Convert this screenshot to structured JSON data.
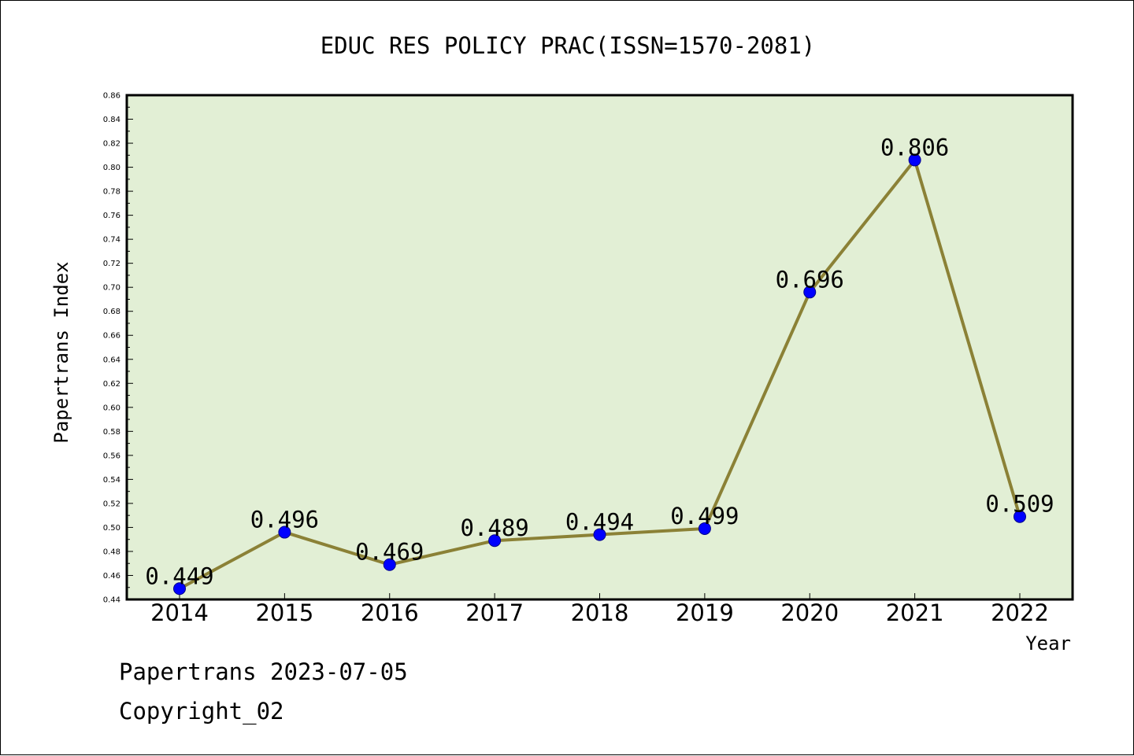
{
  "chart_data": {
    "type": "line",
    "title": "EDUC RES POLICY PRAC(ISSN=1570-2081)",
    "xlabel": "Year",
    "ylabel": "Papertrans Index",
    "categories": [
      "2014",
      "2015",
      "2016",
      "2017",
      "2018",
      "2019",
      "2020",
      "2021",
      "2022"
    ],
    "series": [
      {
        "values": [
          0.449,
          0.496,
          0.469,
          0.489,
          0.494,
          0.499,
          0.696,
          0.806,
          0.509
        ],
        "data_labels": [
          "0.449",
          "0.496",
          "0.469",
          "0.489",
          "0.494",
          "0.499",
          "0.696",
          "0.806",
          "0.509"
        ],
        "line_color": "#8b8136",
        "marker_color": "#0000ff"
      }
    ],
    "ylim": [
      0.44,
      0.86
    ],
    "ymajor_step": 0.02,
    "yticks": [
      "0.44",
      "0.46",
      "0.48",
      "0.50",
      "0.52",
      "0.54",
      "0.56",
      "0.58",
      "0.60",
      "0.62",
      "0.64",
      "0.66",
      "0.68",
      "0.70",
      "0.72",
      "0.74",
      "0.76",
      "0.78",
      "0.80",
      "0.82",
      "0.84",
      "0.86"
    ],
    "grid": false,
    "legend": "none",
    "plot_background": "#e2efd5"
  },
  "footer": {
    "source": "Papertrans 2023-07-05",
    "copyright": "Copyright_02"
  }
}
